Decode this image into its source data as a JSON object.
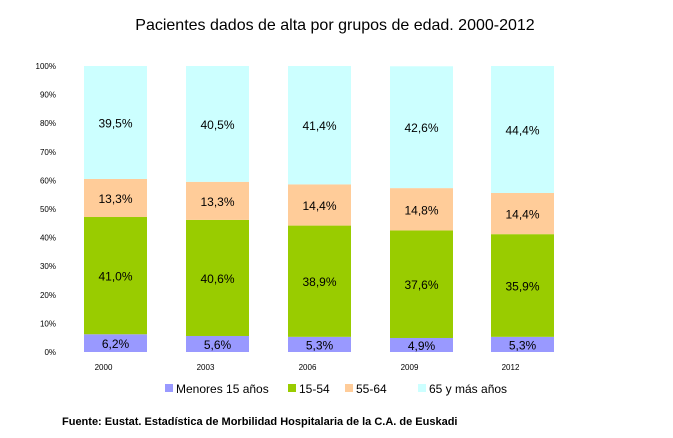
{
  "chart_data": {
    "type": "bar",
    "stacked": true,
    "title": "Pacientes dados de alta por grupos de edad. 2000-2012",
    "categories": [
      "2000",
      "2003",
      "2006",
      "2009",
      "2012"
    ],
    "series": [
      {
        "name": "Menores 15 años",
        "color": "#9999ff",
        "values": [
          6.2,
          5.6,
          5.3,
          4.9,
          5.3
        ],
        "labels": [
          "6,2%",
          "5,6%",
          "5,3%",
          "4,9%",
          "5,3%"
        ]
      },
      {
        "name": "15-54",
        "color": "#99cc00",
        "values": [
          41.0,
          40.6,
          38.9,
          37.6,
          35.9
        ],
        "labels": [
          "41,0%",
          "40,6%",
          "38,9%",
          "37,6%",
          "35,9%"
        ]
      },
      {
        "name": "55-64",
        "color": "#ffcc99",
        "values": [
          13.3,
          13.3,
          14.4,
          14.8,
          14.4
        ],
        "labels": [
          "13,3%",
          "13,3%",
          "14,4%",
          "14,8%",
          "14,4%"
        ]
      },
      {
        "name": "65 y más años",
        "color": "#ccffff",
        "values": [
          39.5,
          40.5,
          41.4,
          42.6,
          44.4
        ],
        "labels": [
          "39,5%",
          "40,5%",
          "41,4%",
          "42,6%",
          "44,4%"
        ]
      }
    ],
    "yticks": [
      "0%",
      "10%",
      "20%",
      "30%",
      "40%",
      "50%",
      "60%",
      "70%",
      "80%",
      "90%",
      "100%"
    ],
    "ylim": [
      0,
      100
    ],
    "grid": false,
    "legend": "bottom"
  },
  "source": "Fuente: Eustat. Estadística de Morbilidad Hospitalaria de la C.A. de Euskadi"
}
